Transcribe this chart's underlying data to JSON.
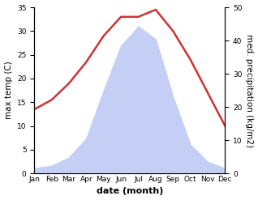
{
  "months": [
    "Jan",
    "Feb",
    "Mar",
    "Apr",
    "May",
    "Jun",
    "Jul",
    "Aug",
    "Sep",
    "Oct",
    "Nov",
    "Dec"
  ],
  "temp": [
    13.5,
    15.5,
    19.0,
    23.5,
    29.0,
    33.0,
    33.0,
    34.5,
    30.0,
    24.0,
    17.0,
    10.0
  ],
  "precip": [
    8,
    12,
    25,
    55,
    130,
    200,
    230,
    210,
    120,
    45,
    18,
    8
  ],
  "temp_color": "#cc3333",
  "precip_fill_color": "#c5cff5",
  "temp_ylim": [
    0,
    35
  ],
  "precip_ylim": [
    0,
    260
  ],
  "temp_yticks": [
    0,
    5,
    10,
    15,
    20,
    25,
    30,
    35
  ],
  "precip_yticks": [
    0,
    10,
    20,
    30,
    40,
    50
  ],
  "xlabel": "date (month)",
  "ylabel_left": "max temp (C)",
  "ylabel_right": "med. precipitation (kg/m2)",
  "background_color": "#ffffff",
  "temp_linewidth": 1.8,
  "xlabel_fontsize": 8,
  "ylabel_fontsize": 7.5,
  "tick_fontsize": 6.5
}
